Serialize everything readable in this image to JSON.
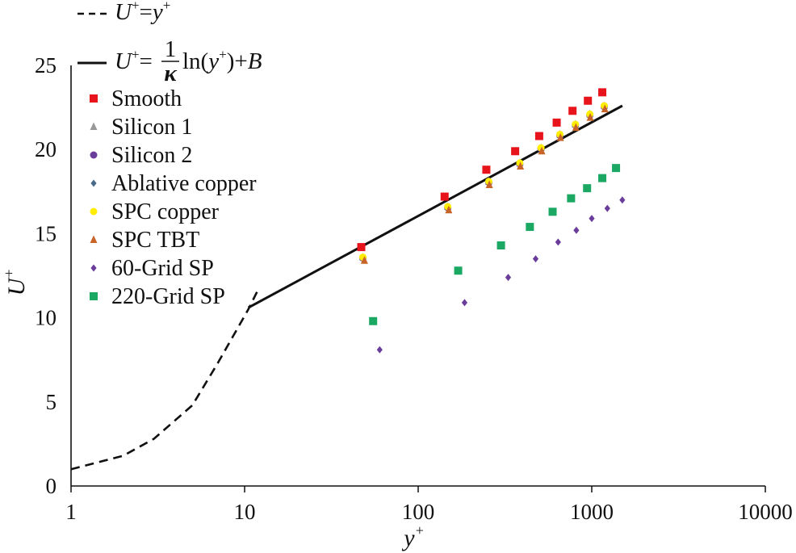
{
  "chart_data": {
    "type": "scatter",
    "x_scale": "log",
    "xlabel_base": "y",
    "xlabel_sup": "+",
    "ylabel_base": "U",
    "ylabel_sup": "+",
    "xlim": [
      1,
      10000
    ],
    "ylim": [
      0,
      25
    ],
    "x_ticks": [
      1,
      10,
      100,
      1000,
      10000
    ],
    "x_tick_labels": [
      "1",
      "10",
      "100",
      "1000",
      "10000"
    ],
    "y_ticks": [
      0,
      5,
      10,
      15,
      20,
      25
    ],
    "y_tick_labels": [
      "0",
      "5",
      "10",
      "15",
      "20",
      "25"
    ],
    "grid": false,
    "legend_position": "top-left",
    "reference_lines": [
      {
        "name": "viscous-sublayer",
        "style": "dashed",
        "color": "#111111",
        "label": {
          "lhs": "U",
          "lhs_sup": "+",
          "eq": "=",
          "rhs": "y",
          "rhs_sup": "+"
        },
        "x": [
          1,
          2,
          3,
          5,
          7,
          10.5,
          12
        ],
        "y": [
          1,
          1.8,
          2.8,
          4.8,
          7.3,
          10.5,
          11.7
        ]
      },
      {
        "name": "log-law",
        "style": "solid",
        "color": "#111111",
        "label": {
          "lhs": "U",
          "lhs_sup": "+",
          "eq": "=",
          "num": "1",
          "den": "κ",
          "ln": "ln(",
          "arg": "y",
          "arg_sup": "+",
          "close": ")+",
          "B": "B"
        },
        "x": [
          10.5,
          1500
        ],
        "y": [
          10.6,
          22.6
        ]
      }
    ],
    "series": [
      {
        "name": "Smooth",
        "marker": "square",
        "color": "#e8141c",
        "x": [
          47,
          142,
          247,
          362,
          498,
          628,
          775,
          950,
          1150
        ],
        "y": [
          14.2,
          17.2,
          18.8,
          19.9,
          20.8,
          21.6,
          22.3,
          22.9,
          23.4
        ]
      },
      {
        "name": "Silicon 1",
        "marker": "triangle",
        "color": "#999999",
        "x": [
          48,
          148,
          255,
          385,
          510,
          655,
          805,
          975,
          1180
        ],
        "y": [
          13.6,
          16.6,
          18.1,
          19.2,
          20.1,
          20.9,
          21.5,
          22.1,
          22.6
        ]
      },
      {
        "name": "Silicon 2",
        "marker": "circle",
        "color": "#6a3d9a",
        "x": [
          48,
          148,
          255,
          385,
          510,
          655,
          805,
          975,
          1180
        ],
        "y": [
          13.55,
          16.55,
          18.05,
          19.15,
          20.05,
          20.85,
          21.45,
          22.05,
          22.55
        ]
      },
      {
        "name": "Ablative copper",
        "marker": "diamond",
        "color": "#4a6a8a",
        "x": [
          48,
          148,
          255,
          385,
          510,
          655,
          805,
          975,
          1180
        ],
        "y": [
          13.5,
          16.5,
          18.0,
          19.1,
          20.0,
          20.8,
          21.4,
          22.0,
          22.5
        ]
      },
      {
        "name": "SPC copper",
        "marker": "circle",
        "color": "#ffee00",
        "x": [
          48,
          148,
          255,
          385,
          510,
          655,
          805,
          975,
          1180
        ],
        "y": [
          13.6,
          16.6,
          18.1,
          19.2,
          20.1,
          20.9,
          21.5,
          22.1,
          22.6
        ]
      },
      {
        "name": "SPC TBT",
        "marker": "triangle",
        "color": "#c86428",
        "x": [
          49,
          150,
          257,
          388,
          515,
          660,
          810,
          980,
          1190
        ],
        "y": [
          13.4,
          16.4,
          17.9,
          19.0,
          19.9,
          20.7,
          21.3,
          21.9,
          22.4
        ]
      },
      {
        "name": "60-Grid SP",
        "marker": "diamond",
        "color": "#6a3d9a",
        "x": [
          60,
          185,
          330,
          475,
          640,
          815,
          1000,
          1230,
          1500
        ],
        "y": [
          8.1,
          10.9,
          12.4,
          13.5,
          14.5,
          15.2,
          15.9,
          16.5,
          17.0
        ]
      },
      {
        "name": "220-Grid SP",
        "marker": "square",
        "color": "#1aa862",
        "x": [
          55,
          170,
          300,
          440,
          595,
          760,
          940,
          1150,
          1380
        ],
        "y": [
          9.8,
          12.8,
          14.3,
          15.4,
          16.3,
          17.1,
          17.7,
          18.3,
          18.9
        ]
      }
    ]
  }
}
